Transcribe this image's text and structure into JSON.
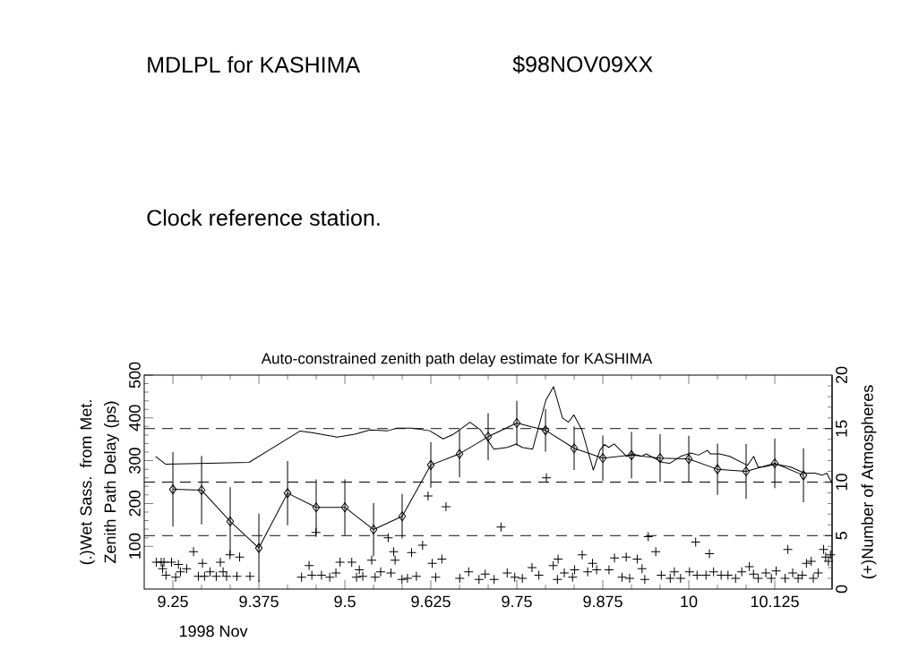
{
  "chart_data": {
    "type": "line",
    "title": "Auto-constrained zenith path delay estimate for KASHIMA",
    "xlabel": "1998 Nov",
    "ylabel": "(.)Wet Sass. from Met. Zenith Path Delay (ps)",
    "y2label": "(+)Number of Atmospheres",
    "annotations": [
      "MDLPL for KASHIMA",
      "$98NOV09XX",
      "Clock reference station."
    ],
    "xlim": [
      9.2083,
      10.2083
    ],
    "xticks": [
      9.25,
      9.375,
      9.5,
      9.625,
      9.75,
      9.875,
      10,
      10.125
    ],
    "ylim": [
      0,
      500
    ],
    "yticks": [
      100,
      200,
      300,
      400,
      500
    ],
    "y2lim": [
      0,
      20
    ],
    "y2ticks": [
      0,
      5,
      10,
      15,
      20
    ],
    "ref_lines": [
      {
        "axis": "y2",
        "value": 5,
        "line_style": "dashed"
      },
      {
        "axis": "y2",
        "value": 10,
        "line_style": "dashed"
      },
      {
        "axis": "y2",
        "value": 15,
        "line_style": "dashed"
      }
    ],
    "series": [
      {
        "marker": "diamond",
        "color": "#000000",
        "x": [
          9.25,
          9.2917,
          9.3333,
          9.375,
          9.4167,
          9.4583,
          9.5,
          9.5417,
          9.5833,
          9.625,
          9.6667,
          9.7083,
          9.75,
          9.7917,
          9.8333,
          9.875,
          9.9167,
          9.9583,
          10,
          10.0417,
          10.0833,
          10.125,
          10.1667
        ],
        "values": [
          233,
          231,
          158,
          96,
          224,
          191,
          191,
          139,
          170,
          290,
          316,
          356,
          388,
          371,
          329,
          306,
          313,
          306,
          304,
          280,
          275,
          294,
          266
        ],
        "errors": [
          87,
          80,
          80,
          80,
          75,
          65,
          65,
          62,
          52,
          53,
          55,
          55,
          52,
          50,
          51,
          53,
          54,
          56,
          54,
          60,
          64,
          58,
          63
        ]
      },
      {
        "marker": "none",
        "color": "#000000",
        "x": [
          9.2249,
          9.2392,
          9.3607,
          9.4345,
          9.454,
          9.4888,
          9.5148,
          9.5365,
          9.5625,
          9.5755,
          9.5973,
          9.6233,
          9.6428,
          9.6581,
          9.6819,
          9.6971,
          9.7167,
          9.7362,
          9.7492,
          9.7578,
          9.773,
          9.7924,
          9.8034,
          9.8164,
          9.8251,
          9.8329,
          9.8446,
          9.8612,
          9.8707,
          9.8772,
          9.8837,
          9.8915,
          9.9097,
          9.9185,
          9.9315,
          9.938,
          9.9618,
          9.9727,
          9.9879,
          10.0031,
          10.0139,
          10.0269,
          10.0313,
          10.0443,
          10.0595,
          10.0855,
          10.0943,
          10.1008,
          10.1073,
          10.1268,
          10.1484,
          10.168,
          10.1832,
          10.194,
          10.2005,
          10.2083
        ],
        "values": [
          310,
          292,
          296,
          369,
          365,
          355,
          362,
          372,
          370,
          376,
          376,
          370,
          351,
          362,
          390,
          372,
          327,
          331,
          339,
          331,
          327,
          442,
          473,
          400,
          390,
          407,
          372,
          278,
          324,
          338,
          331,
          339,
          310,
          316,
          310,
          316,
          296,
          294,
          310,
          318,
          313,
          324,
          316,
          316,
          310,
          289,
          310,
          285,
          285,
          292,
          285,
          271,
          271,
          266,
          271,
          247
        ]
      },
      {
        "type": "scatter",
        "marker": "cross",
        "axis": "y2",
        "color": "#000000",
        "x": [
          9.226,
          9.233,
          9.237,
          9.248,
          9.258,
          9.235,
          9.24,
          9.254,
          9.261,
          9.27,
          9.28,
          9.287,
          9.293,
          9.296,
          9.304,
          9.313,
          9.319,
          9.323,
          9.328,
          9.333,
          9.343,
          9.347,
          9.362,
          9.437,
          9.448,
          9.452,
          9.458,
          9.466,
          9.478,
          9.487,
          9.493,
          9.51,
          9.517,
          9.521,
          9.526,
          9.539,
          9.544,
          9.552,
          9.563,
          9.567,
          9.571,
          9.573,
          9.583,
          9.591,
          9.597,
          9.604,
          9.613,
          9.621,
          9.627,
          9.632,
          9.641,
          9.647,
          9.667,
          9.68,
          9.695,
          9.704,
          9.717,
          9.727,
          9.736,
          9.747,
          9.758,
          9.772,
          9.782,
          9.793,
          9.803,
          9.81,
          9.809,
          9.819,
          9.831,
          9.834,
          9.845,
          9.853,
          9.86,
          9.866,
          9.884,
          9.892,
          9.903,
          9.909,
          9.914,
          9.925,
          9.932,
          9.936,
          9.941,
          9.952,
          9.96,
          9.973,
          9.979,
          9.988,
          10.001,
          10.01,
          10.012,
          10.025,
          10.03,
          10.036,
          10.047,
          10.057,
          10.068,
          10.077,
          10.088,
          10.094,
          10.101,
          10.112,
          10.12,
          10.127,
          10.14,
          10.144,
          10.151,
          10.159,
          10.165,
          10.171,
          10.178,
          10.181,
          10.188,
          10.196,
          10.199,
          10.203,
          10.206
        ],
        "values": [
          2.5,
          2.5,
          2.5,
          2.5,
          2.3,
          1.9,
          1.3,
          1.1,
          1.6,
          1.9,
          3.5,
          1.2,
          2.4,
          1.2,
          1.6,
          1.2,
          2.5,
          1.6,
          1.2,
          3.2,
          1.2,
          3,
          1.2,
          1.1,
          2.2,
          1.3,
          5.3,
          1.3,
          1.1,
          1.5,
          2.5,
          2.5,
          1.1,
          1.8,
          1.2,
          2.7,
          1.1,
          1.6,
          4.8,
          1.5,
          3.5,
          2.7,
          0.9,
          1,
          3.4,
          1.2,
          4.1,
          8.7,
          2.4,
          1.1,
          2.8,
          7.7,
          1,
          1.6,
          0.9,
          1.4,
          0.9,
          5.8,
          1.5,
          1.1,
          1,
          2,
          1.3,
          10.4,
          2.2,
          2.8,
          0.9,
          1.5,
          1.1,
          1.8,
          3.2,
          1.6,
          2.4,
          1.8,
          1.8,
          2.9,
          1.1,
          3,
          1,
          2.8,
          1.9,
          0.9,
          4.9,
          3.5,
          1.3,
          1,
          1.6,
          1,
          1.6,
          4.4,
          1.3,
          1.3,
          3.3,
          1.6,
          1.3,
          1.3,
          1,
          1.6,
          2.1,
          1.4,
          1,
          1.5,
          1,
          1.7,
          1,
          3.7,
          1.5,
          1,
          1.3,
          2.4,
          2.6,
          1,
          1.5,
          3.7,
          3,
          2.6,
          3.2
        ]
      }
    ]
  }
}
